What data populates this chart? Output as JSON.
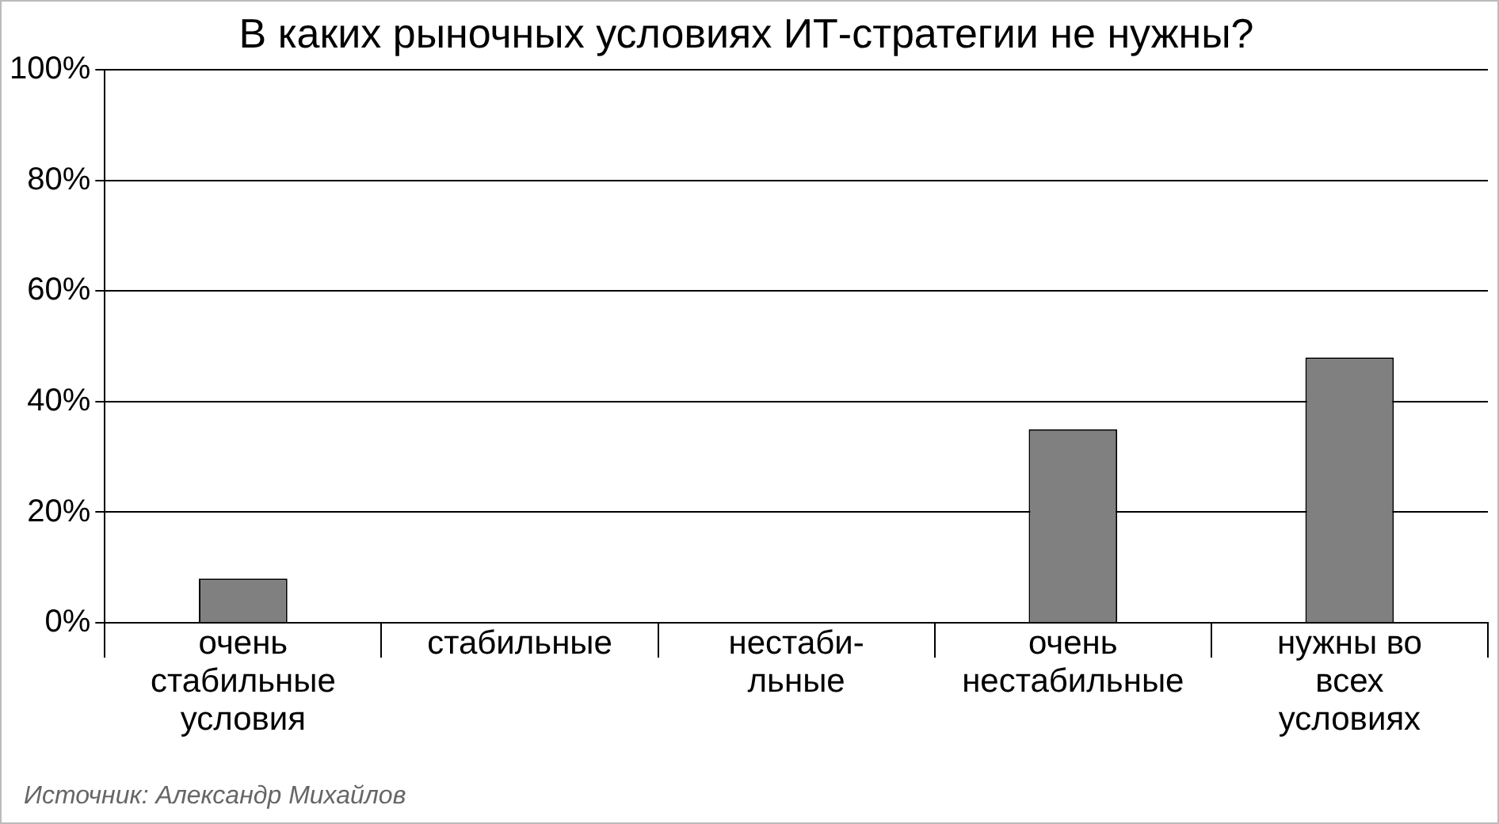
{
  "chart_data": {
    "type": "bar",
    "title": "В каких рыночных условиях ИТ-стратегии не нужны?",
    "categories": [
      "очень\nстабильные\nусловия",
      "стабильные",
      "нестаби-\nльные",
      "очень\nнестабильные",
      "нужны во\nвсех\nусловиях"
    ],
    "values": [
      8,
      0,
      0,
      35,
      48
    ],
    "color": "#808080",
    "ylim": [
      0,
      100
    ],
    "yticks": [
      {
        "value": 0,
        "label": "0%"
      },
      {
        "value": 20,
        "label": "20%"
      },
      {
        "value": 40,
        "label": "40%"
      },
      {
        "value": 60,
        "label": "60%"
      },
      {
        "value": 80,
        "label": "80%"
      },
      {
        "value": 100,
        "label": "100%"
      }
    ],
    "grid": "y",
    "legend": false,
    "annotations": [
      "Источник: Александр Михайлов"
    ]
  }
}
